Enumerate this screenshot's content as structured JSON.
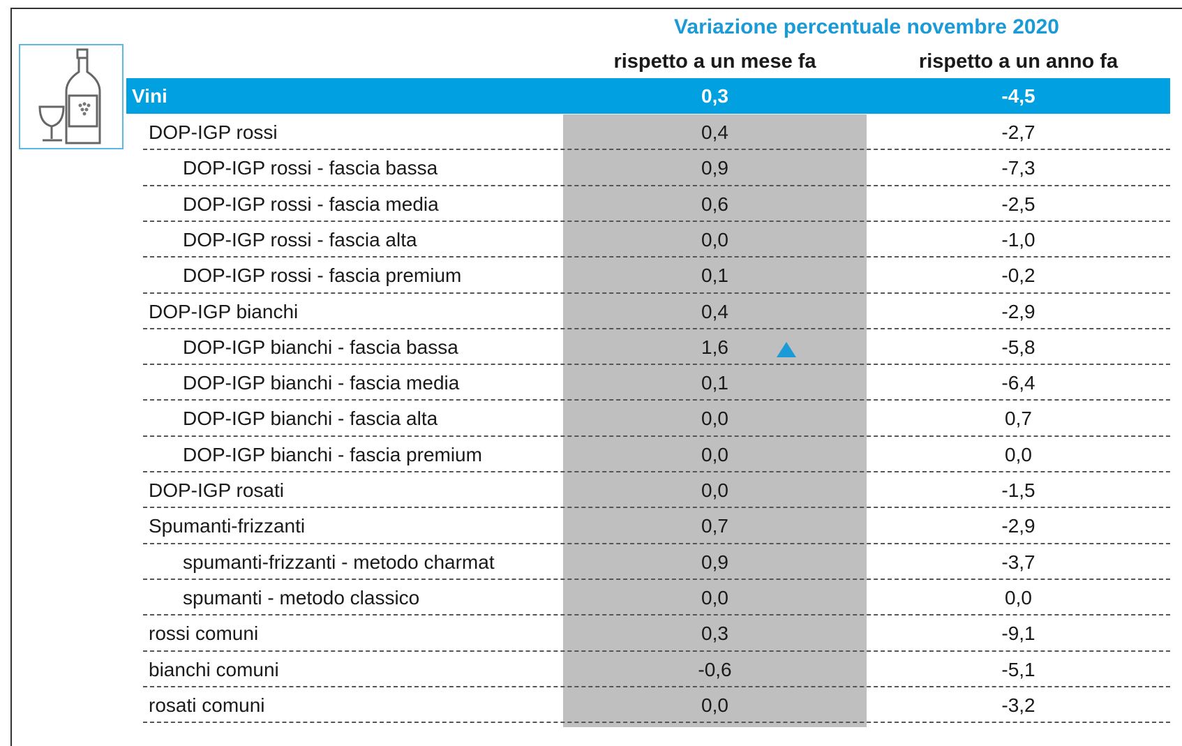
{
  "header": {
    "title": "Variazione percentuale novembre 2020",
    "columns": [
      "rispetto a un mese fa",
      "rispetto a un anno fa"
    ]
  },
  "table": {
    "total": {
      "label": "Vini",
      "values": [
        "0,3",
        "-4,5"
      ]
    },
    "groups": [
      {
        "label": "DOP-IGP rossi",
        "values": [
          "0,4",
          "-2,7"
        ],
        "items": [
          {
            "label": "DOP-IGP rossi - fascia bassa",
            "values": [
              "0,9",
              "-7,3"
            ]
          },
          {
            "label": "DOP-IGP rossi - fascia media",
            "values": [
              "0,6",
              "-2,5"
            ]
          },
          {
            "label": "DOP-IGP rossi - fascia alta",
            "values": [
              "0,0",
              "-1,0"
            ]
          },
          {
            "label": "DOP-IGP rossi - fascia premium",
            "values": [
              "0,1",
              "-0,2"
            ]
          }
        ]
      },
      {
        "label": "DOP-IGP bianchi",
        "values": [
          "0,4",
          "-2,9"
        ],
        "items": [
          {
            "label": "DOP-IGP bianchi - fascia bassa",
            "values": [
              "1,6",
              "-5,8"
            ]
          },
          {
            "label": "DOP-IGP bianchi - fascia media",
            "values": [
              "0,1",
              "-6,4"
            ]
          },
          {
            "label": "DOP-IGP bianchi - fascia alta",
            "values": [
              "0,0",
              "0,7"
            ]
          },
          {
            "label": "DOP-IGP bianchi - fascia premium",
            "values": [
              "0,0",
              "0,0"
            ]
          }
        ]
      },
      {
        "label": "DOP-IGP rosati",
        "values": [
          "0,0",
          "-1,5"
        ],
        "items": []
      },
      {
        "label": "Spumanti-frizzanti",
        "values": [
          "0,7",
          "-2,9"
        ],
        "items": [
          {
            "label": "spumanti-frizzanti - metodo charmat",
            "values": [
              "0,9",
              "-3,7"
            ]
          },
          {
            "label": "spumanti - metodo classico",
            "values": [
              "0,0",
              "0,0"
            ]
          }
        ]
      },
      {
        "label": "rossi comuni",
        "values": [
          "0,3",
          "-9,1"
        ],
        "items": []
      },
      {
        "label": "bianchi comuni",
        "values": [
          "-0,6",
          "-5,1"
        ],
        "items": []
      },
      {
        "label": "rosati comuni",
        "values": [
          "0,0",
          "-3,2"
        ],
        "items": []
      }
    ]
  }
}
